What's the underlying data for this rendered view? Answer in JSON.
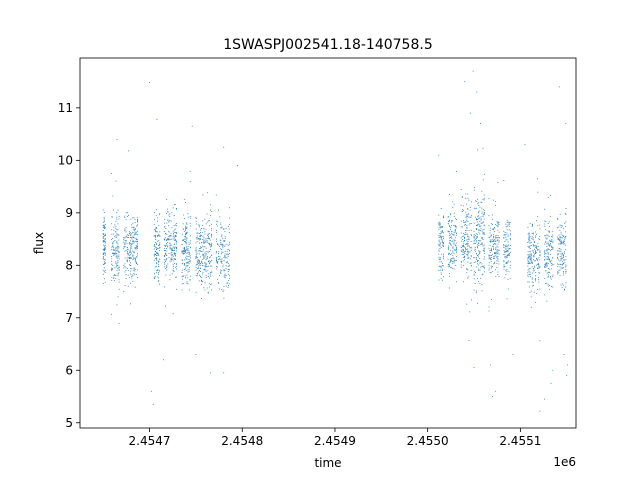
{
  "chart_data": {
    "type": "scatter",
    "title": "1SWASPJ002541.18-140758.5",
    "xlabel": "time",
    "ylabel": "flux",
    "x_offset_label": "1e6",
    "x_scale": 1000000,
    "xlim": [
      2454625,
      2455160
    ],
    "ylim": [
      4.9,
      11.95
    ],
    "xticks": [
      2454700,
      2454800,
      2454900,
      2455000,
      2455100
    ],
    "xtick_labels": [
      "2.4547",
      "2.4548",
      "2.4549",
      "2.4550",
      "2.4551"
    ],
    "yticks": [
      5,
      6,
      7,
      8,
      9,
      10,
      11
    ],
    "ytick_labels": [
      "5",
      "6",
      "7",
      "8",
      "9",
      "10",
      "11"
    ],
    "grid": false,
    "series": [
      {
        "color": "#1f77b4",
        "marker_size": 1,
        "observing_groups": [
          {
            "x_start": 2454650,
            "x_end": 2454653,
            "center": 8.35,
            "spread": 0.55,
            "n": 90
          },
          {
            "x_start": 2454659,
            "x_end": 2454668,
            "center": 8.3,
            "spread": 0.65,
            "n": 140
          },
          {
            "x_start": 2454672,
            "x_end": 2454688,
            "center": 8.35,
            "spread": 0.6,
            "n": 220
          },
          {
            "x_start": 2454705,
            "x_end": 2454712,
            "center": 8.3,
            "spread": 0.55,
            "n": 110
          },
          {
            "x_start": 2454716,
            "x_end": 2454730,
            "center": 8.4,
            "spread": 0.6,
            "n": 200
          },
          {
            "x_start": 2454735,
            "x_end": 2454745,
            "center": 8.3,
            "spread": 0.6,
            "n": 160
          },
          {
            "x_start": 2454750,
            "x_end": 2454768,
            "center": 8.25,
            "spread": 0.65,
            "n": 260
          },
          {
            "x_start": 2454772,
            "x_end": 2454787,
            "center": 8.2,
            "spread": 0.6,
            "n": 160
          },
          {
            "x_start": 2455012,
            "x_end": 2455018,
            "center": 8.4,
            "spread": 0.55,
            "n": 90
          },
          {
            "x_start": 2455022,
            "x_end": 2455032,
            "center": 8.45,
            "spread": 0.6,
            "n": 140
          },
          {
            "x_start": 2455036,
            "x_end": 2455048,
            "center": 8.5,
            "spread": 0.7,
            "n": 170
          },
          {
            "x_start": 2455050,
            "x_end": 2455062,
            "center": 8.5,
            "spread": 0.75,
            "n": 200
          },
          {
            "x_start": 2455066,
            "x_end": 2455078,
            "center": 8.4,
            "spread": 0.6,
            "n": 160
          },
          {
            "x_start": 2455082,
            "x_end": 2455090,
            "center": 8.3,
            "spread": 0.55,
            "n": 110
          },
          {
            "x_start": 2455108,
            "x_end": 2455122,
            "center": 8.2,
            "spread": 0.6,
            "n": 200
          },
          {
            "x_start": 2455126,
            "x_end": 2455136,
            "center": 8.2,
            "spread": 0.65,
            "n": 140
          },
          {
            "x_start": 2455140,
            "x_end": 2455150,
            "center": 8.25,
            "spread": 0.6,
            "n": 140
          }
        ],
        "outliers": [
          [
            2454700,
            11.48
          ],
          [
            2454708,
            10.78
          ],
          [
            2454704,
            5.35
          ],
          [
            2454702,
            5.6
          ],
          [
            2454715,
            6.2
          ],
          [
            2454750,
            6.3
          ],
          [
            2454780,
            5.95
          ],
          [
            2454766,
            5.95
          ],
          [
            2454780,
            10.25
          ],
          [
            2454795,
            9.9
          ],
          [
            2454665,
            10.4
          ],
          [
            2454746,
            10.65
          ],
          [
            2455040,
            11.5
          ],
          [
            2455049,
            11.7
          ],
          [
            2455053,
            11.3
          ],
          [
            2455046,
            10.9
          ],
          [
            2455057,
            10.7
          ],
          [
            2455054,
            10.2
          ],
          [
            2455050,
            6.05
          ],
          [
            2455070,
            5.5
          ],
          [
            2455073,
            5.6
          ],
          [
            2455068,
            6.1
          ],
          [
            2455105,
            10.3
          ],
          [
            2455121,
            5.22
          ],
          [
            2455133,
            5.75
          ],
          [
            2455135,
            6.0
          ],
          [
            2455142,
            11.4
          ],
          [
            2455149,
            10.7
          ],
          [
            2455150,
            5.9
          ],
          [
            2455151,
            6.1
          ],
          [
            2455147,
            6.3
          ],
          [
            2455126,
            5.45
          ],
          [
            2455012,
            10.1
          ],
          [
            2455092,
            6.3
          ]
        ]
      }
    ]
  }
}
